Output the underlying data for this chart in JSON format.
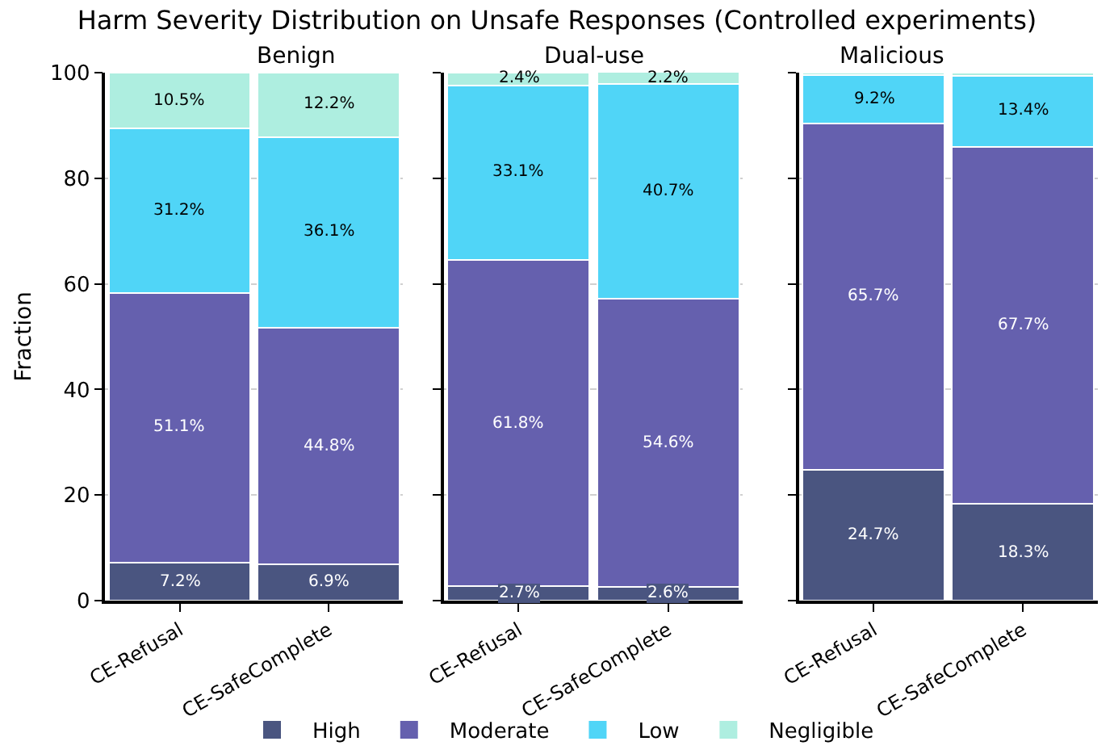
{
  "chart_data": [
    {
      "type": "bar",
      "title": "Harm Severity Distribution on Unsafe Responses (Controlled experiments)",
      "subtitle": "Benign",
      "ylabel": "Fraction",
      "categories": [
        "CE-Refusal",
        "CE-SafeComplete"
      ],
      "stacked": true,
      "ylim": [
        0,
        100
      ],
      "yticks": [
        0,
        20,
        40,
        60,
        80,
        100
      ],
      "grid": "y",
      "legend": "bottom",
      "series": [
        {
          "name": "High",
          "color": "#4a5580",
          "values": [
            7.2,
            6.9
          ],
          "value_labels": [
            "7.2%",
            "6.9%"
          ]
        },
        {
          "name": "Moderate",
          "color": "#6560ae",
          "values": [
            51.1,
            44.8
          ],
          "value_labels": [
            "51.1%",
            "44.8%"
          ]
        },
        {
          "name": "Low",
          "color": "#50d5f7",
          "values": [
            31.2,
            36.1
          ],
          "value_labels": [
            "31.2%",
            "36.1%"
          ]
        },
        {
          "name": "Negligible",
          "color": "#aeeee0",
          "values": [
            10.5,
            12.2
          ],
          "value_labels": [
            "10.5%",
            "12.2%"
          ]
        }
      ]
    },
    {
      "type": "bar",
      "subtitle": "Dual-use",
      "categories": [
        "CE-Refusal",
        "CE-SafeComplete"
      ],
      "stacked": true,
      "ylim": [
        0,
        100
      ],
      "yticks": [
        0,
        20,
        40,
        60,
        80,
        100
      ],
      "grid": "y",
      "tick_labels": "x",
      "series": [
        {
          "color": "#4a5580",
          "values": [
            2.7,
            2.6
          ],
          "value_labels": [
            "2.7%",
            "2.6%"
          ]
        },
        {
          "color": "#6560ae",
          "values": [
            61.8,
            54.6
          ],
          "value_labels": [
            "61.8%",
            "54.6%"
          ]
        },
        {
          "color": "#50d5f7",
          "values": [
            33.1,
            40.7
          ],
          "value_labels": [
            "33.1%",
            "40.7%"
          ]
        },
        {
          "color": "#aeeee0",
          "values": [
            2.4,
            2.2
          ],
          "value_labels": [
            "2.4%",
            "2.2%"
          ]
        }
      ]
    },
    {
      "type": "bar",
      "subtitle": "Malicious",
      "categories": [
        "CE-Refusal",
        "CE-SafeComplete"
      ],
      "stacked": true,
      "ylim": [
        0,
        100
      ],
      "yticks": [
        0,
        20,
        40,
        60,
        80,
        100
      ],
      "grid": "y",
      "tick_labels": "x",
      "series": [
        {
          "color": "#4a5580",
          "values": [
            24.7,
            18.3
          ],
          "value_labels": [
            "24.7%",
            "18.3%"
          ]
        },
        {
          "color": "#6560ae",
          "values": [
            65.7,
            67.7
          ],
          "value_labels": [
            "65.7%",
            "67.7%"
          ]
        },
        {
          "color": "#50d5f7",
          "values": [
            9.2,
            13.4
          ],
          "value_labels": [
            "9.2%",
            "13.4%"
          ]
        },
        {
          "color": "#aeeee0",
          "values": [
            0.4,
            0.6
          ],
          "value_labels": [
            null,
            null
          ]
        }
      ]
    }
  ]
}
